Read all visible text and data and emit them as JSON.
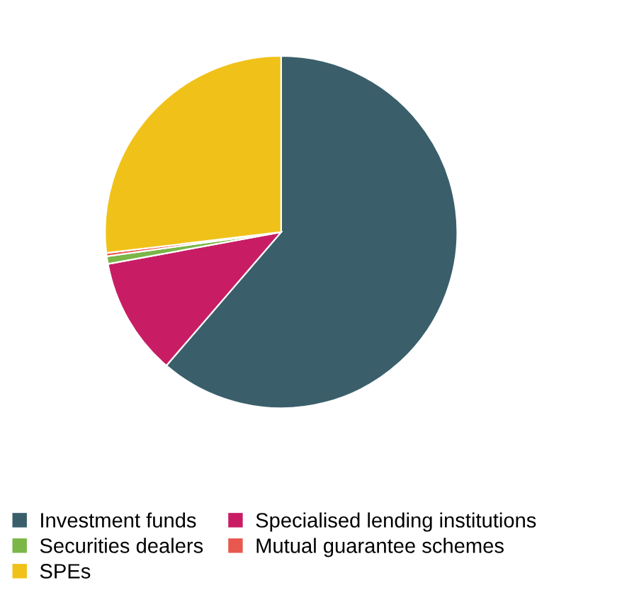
{
  "chart_data": {
    "type": "pie",
    "categories": [
      "Investment funds",
      "Specialised lending institutions",
      "Securities dealers",
      "Mutual guarantee schemes",
      "SPEs"
    ],
    "values": [
      61.3,
      10.8,
      0.7,
      0.3,
      26.9
    ],
    "colors": [
      "#3a5f6b",
      "#c81d64",
      "#7ab648",
      "#e8584f",
      "#f0c219"
    ],
    "legend": "bottom"
  }
}
